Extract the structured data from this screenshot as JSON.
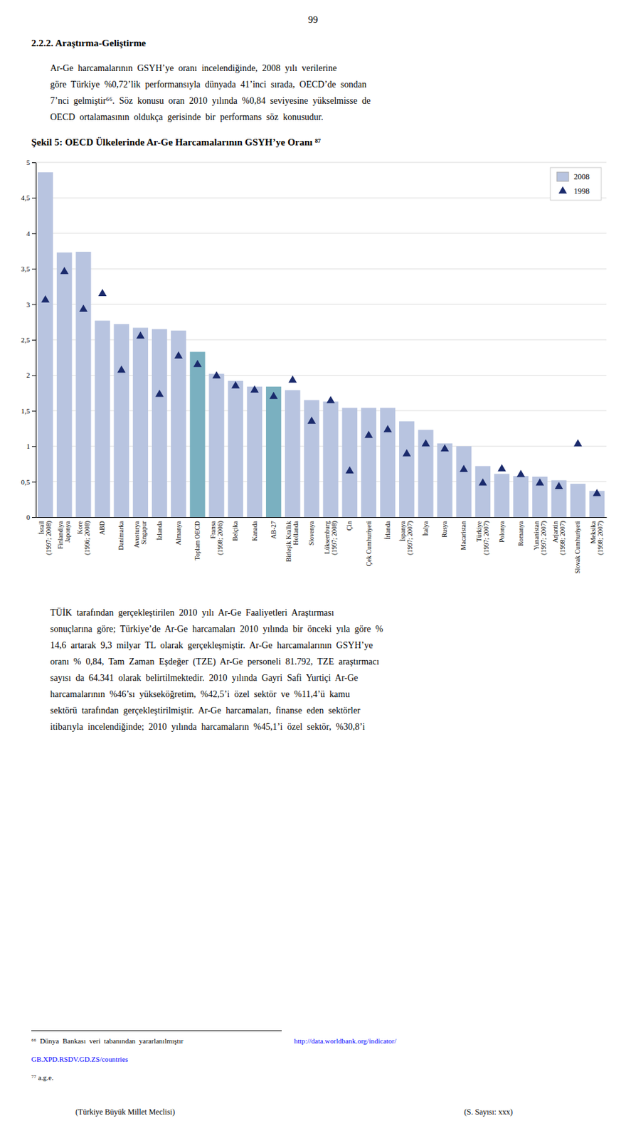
{
  "page_number": "99",
  "section_title": "2.2.2. Araştırma-Geliştirme",
  "paragraphs": [
    "Ar-Ge  harcamalarının  GSYH’ye  oranı  incelendiğinde,  2008  yılı  verilerine\ngöre  Türkiye  %0,72’lik  performansıyla  dünyada  41’inci  sırada,  OECD’de  sondan\n7’nci  gelmiştir⁶⁶.  Söz  konusu  oran  2010  yılında  %0,84  seviyesine  yükselmisse  de\nOECD  ortalamasının  oldukça  gerisinde  bir  performans  söz  konusudur.",
    "TÜİK  tarafından  gerçekleştirilen  2010  yılı  Ar-Ge  Faaliyetleri  Araştırması\nsonuçlarına  göre;  Türkiye’de  Ar-Ge  harcamaları  2010  yılında  bir  önceki  yıla  göre  %\n14,6  artarak  9,3  milyar  TL  olarak  gerçekleşmiştir.  Ar-Ge  harcamalarının  GSYH’ye\noranı  %  0,84,  Tam  Zaman  Eşdeğer  (TZE)  Ar-Ge  personeli  81.792,  TZE  araştırmacı\nsayısı  da  64.341  olarak  belirtilmektedir.  2010  yılında  Gayri  Safi  Yurtiçi  Ar-Ge\nharcamalarının  %46’sı  yükseköğretim,  %42,5’i  özel  sektör  ve  %11,4’ü  kamu\nsektörü  tarafından  gerçekleştirilmiştir.  Ar-Ge  harcamaları,  finanse  eden  sektörler\nitibarıyla  incelendiğinde;  2010  yılında  harcamaların  %45,1’i  özel  sektör,  %30,8’i"
  ],
  "chart_data": {
    "type": "bar",
    "title": "Şekil 5: OECD Ülkelerinde Ar-Ge Harcamalarının GSYH’ye Oranı  ⁸⁷",
    "categories": [
      "İsrail\n(1997; 2008)",
      "Finlandiya\nJaponya",
      "Kore\n(1996; 2008)",
      "ABD",
      "Danimarka",
      "Avusturya\nSingapur",
      "İzlanda",
      "Almanya",
      "Toplam OECD",
      "Fransa\n(1998; 2006)",
      "Belçika",
      "Kanada",
      "AB-27",
      "Birleşik Krallık\nHollanda",
      "Slovenya",
      "Lüksemburg\n(1997; 2008)",
      "Çin",
      "Çek Cumhuriyeti",
      "İrlanda",
      "İspanya\n(1997; 2007)",
      "İtalya",
      "Rusya",
      "Macaristan",
      "Türkiye\n(1997; 2007)",
      "Polonya",
      "Romanya",
      "Yunanistan\n(1997; 2007)",
      "Arjantin\n(1998; 2007)",
      "Slovak Cumhuriyeti",
      "Meksika\n(1998; 2007)"
    ],
    "series": [
      {
        "name": "2008",
        "type": "bar",
        "color": "#b8c4e0",
        "colors": [
          "#b8c4e0",
          "#b8c4e0",
          "#b8c4e0",
          "#b8c4e0",
          "#b8c4e0",
          "#b8c4e0",
          "#b8c4e0",
          "#b8c4e0",
          "#7ab0c0",
          "#b8c4e0",
          "#b8c4e0",
          "#b8c4e0",
          "#7ab0c0",
          "#b8c4e0",
          "#b8c4e0",
          "#b8c4e0",
          "#b8c4e0",
          "#b8c4e0",
          "#b8c4e0",
          "#b8c4e0",
          "#b8c4e0",
          "#b8c4e0",
          "#b8c4e0",
          "#b8c4e0",
          "#b8c4e0",
          "#b8c4e0",
          "#b8c4e0",
          "#b8c4e0",
          "#b8c4e0",
          "#b8c4e0"
        ],
        "values": [
          4.86,
          3.73,
          3.74,
          2.77,
          2.72,
          2.67,
          2.65,
          2.63,
          2.33,
          2.02,
          1.92,
          1.84,
          1.84,
          1.79,
          1.65,
          1.63,
          1.54,
          1.54,
          1.54,
          1.35,
          1.23,
          1.04,
          1.0,
          0.72,
          0.61,
          0.58,
          0.57,
          0.52,
          0.47,
          0.37
        ]
      },
      {
        "name": "1998",
        "type": "scatter",
        "marker": "triangle",
        "color": "#1a2a6c",
        "values": [
          3.06,
          3.46,
          2.93,
          3.15,
          2.07,
          2.55,
          1.73,
          2.27,
          2.15,
          1.99,
          1.85,
          1.79,
          1.7,
          1.93,
          1.35,
          1.64,
          0.65,
          1.15,
          1.23,
          0.89,
          1.03,
          0.96,
          0.67,
          0.48,
          0.68,
          0.6,
          0.48,
          0.43,
          1.03,
          0.33
        ]
      }
    ],
    "ylim": [
      0,
      5
    ],
    "yticks": [
      0,
      {
        "value": 0.5,
        "label": "0,5"
      },
      1,
      {
        "value": 1.5,
        "label": "1,5"
      },
      2,
      {
        "value": 2.5,
        "label": "2,5"
      },
      3,
      {
        "value": 3.5,
        "label": "3,5"
      },
      4,
      {
        "value": 4.5,
        "label": "4,5"
      },
      5
    ],
    "grid": true,
    "legend": "upper right"
  },
  "footnotes": [
    [
      {
        "text": "⁶⁶  Dünya  Bankası  veri  tabanından  yararlanılmıştır"
      },
      {
        "text": "http://data.worldbank.org/indicator/",
        "color": "blue"
      }
    ],
    [
      {
        "text": "GB.XPD.RSDV.GD.ZS/countries",
        "color": "blue"
      }
    ],
    [
      {
        "text": "⁷⁷ a.g.e."
      }
    ]
  ],
  "footer": [
    "(Türkiye Büyük Millet Meclisi)",
    "(S. Sayısı: xxx)"
  ]
}
